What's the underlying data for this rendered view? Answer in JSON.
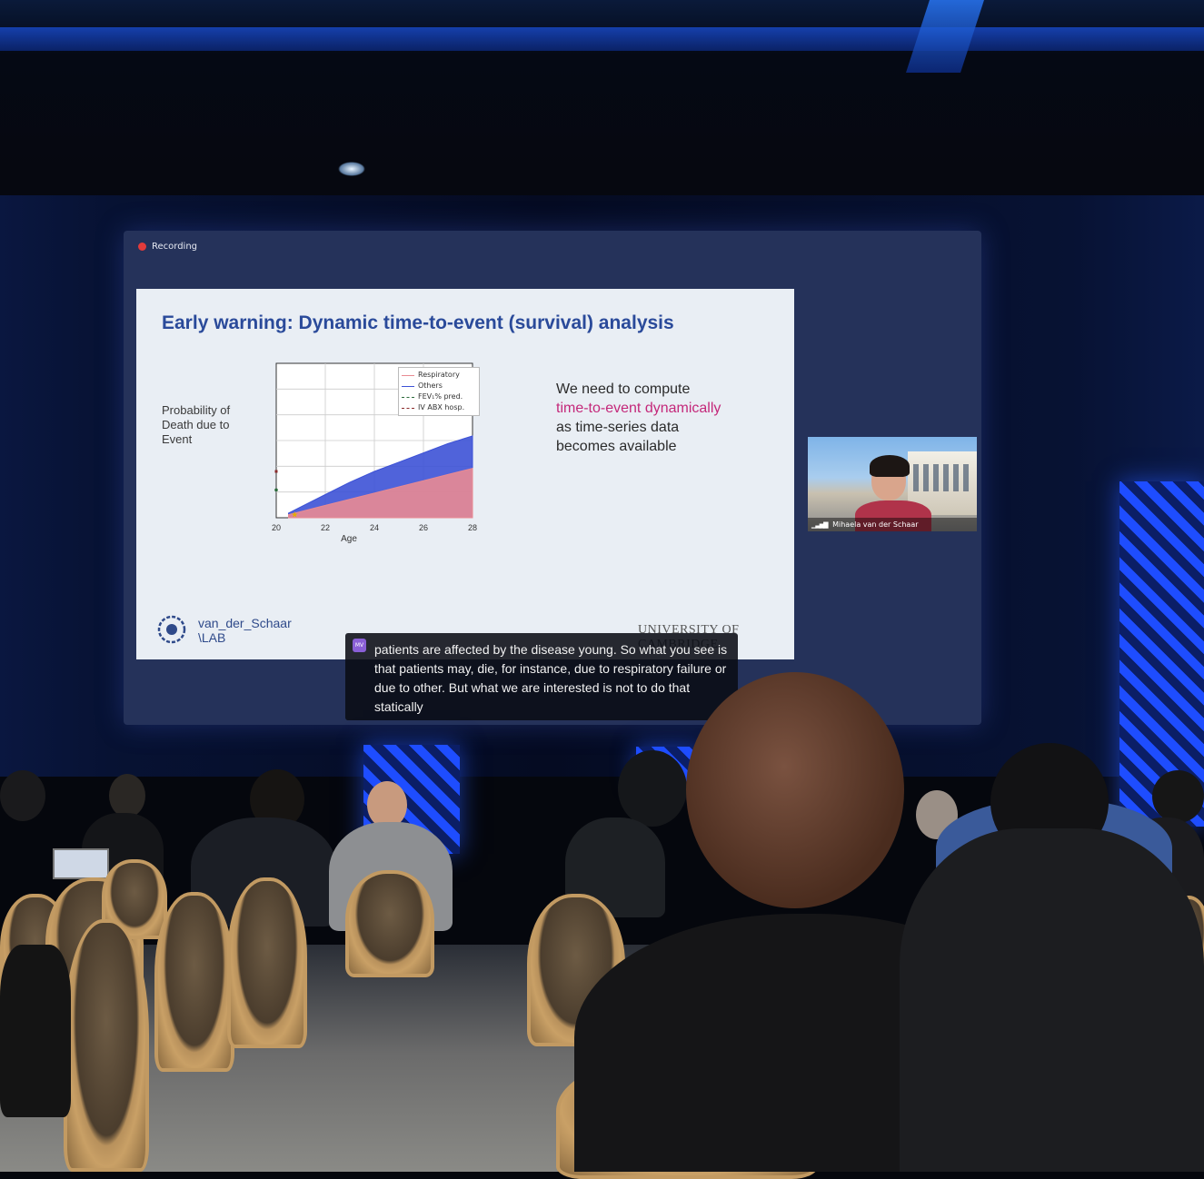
{
  "screen": {
    "recording_label": "Recording"
  },
  "slide": {
    "title": "Early warning: Dynamic time-to-event (survival) analysis",
    "y_axis_label": "Probability of Death due to Event",
    "body_line1": "We need to compute",
    "body_highlight": "time-to-event dynamically",
    "body_line3": "as time-series data",
    "body_line4": "becomes available",
    "lab_name_line1": "van_der_Schaar",
    "lab_name_line2": "\\LAB",
    "university": "UNIVERSITY OF CAMBRIDGE",
    "highlight_color": "#c4287a",
    "title_color": "#2a4a9a"
  },
  "chart_data": {
    "type": "area",
    "xlabel": "Age",
    "ylabel": "",
    "x_ticks": [
      "20",
      "22",
      "24",
      "26",
      "28"
    ],
    "xlim": [
      20,
      28
    ],
    "ylim": [
      0,
      1
    ],
    "grid": true,
    "legend_position": "top-right",
    "legend": [
      "Respiratory",
      "Others",
      "FEV₁% pred.",
      "IV ABX hosp."
    ],
    "x": [
      20.5,
      21,
      22,
      23,
      24,
      25,
      26,
      27,
      28
    ],
    "series": [
      {
        "name": "Respiratory",
        "color": "#e98a92",
        "values": [
          0.02,
          0.04,
          0.08,
          0.12,
          0.16,
          0.2,
          0.24,
          0.28,
          0.32
        ]
      },
      {
        "name": "Others",
        "color": "#3d52d6",
        "values": [
          0.03,
          0.07,
          0.15,
          0.23,
          0.3,
          0.36,
          0.42,
          0.48,
          0.53
        ]
      }
    ]
  },
  "caption": {
    "badge": "MV",
    "text": "patients are affected by the disease young. So what you see is that patients may, die, for instance, due to respiratory failure or due to other. But what we are interested is not to do that statically"
  },
  "video_tile": {
    "speaker_name": "Mihaela van der Schaar"
  }
}
